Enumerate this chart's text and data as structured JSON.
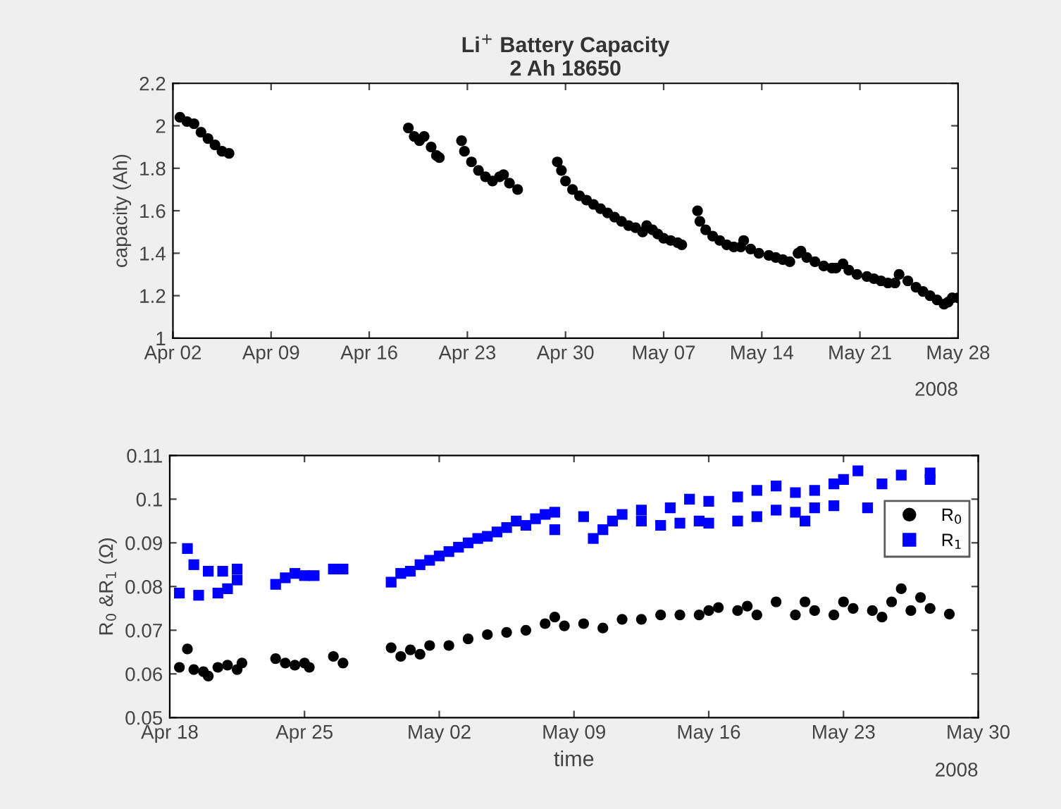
{
  "chart_data": [
    {
      "type": "scatter",
      "title": "Li$^{+}$ Battery Capacity",
      "subtitle": "2 Ah 18650",
      "ylabel": "capacity (Ah)",
      "marker": "circle",
      "grid": false,
      "legend": false,
      "xlim": [
        "2008-04-02",
        "2008-05-28"
      ],
      "xticks": [
        {
          "value": "2008-04-02",
          "label": "Apr 02"
        },
        {
          "value": "2008-04-09",
          "label": "Apr 09"
        },
        {
          "value": "2008-04-16",
          "label": "Apr 16"
        },
        {
          "value": "2008-04-23",
          "label": "Apr 23"
        },
        {
          "value": "2008-04-30",
          "label": "Apr 30"
        },
        {
          "value": "2008-05-07",
          "label": "May 07"
        },
        {
          "value": "2008-05-14",
          "label": "May 14"
        },
        {
          "value": "2008-05-21",
          "label": "May 21"
        },
        {
          "value": "2008-05-28",
          "label": "May 28"
        }
      ],
      "ylim": [
        1,
        2.2
      ],
      "yticks": [
        1,
        1.2,
        1.4,
        1.6,
        1.8,
        2,
        2.2
      ],
      "annotations": [
        "2008"
      ],
      "series": [
        {
          "color": "#000000",
          "x": [
            "2008-04-02T12:00",
            "2008-04-03T00:00",
            "2008-04-03T12:00",
            "2008-04-04T00:00",
            "2008-04-04T12:00",
            "2008-04-05T00:00",
            "2008-04-05T12:00",
            "2008-04-06T00:00",
            "2008-04-18T19:00",
            "2008-04-19T05:00",
            "2008-04-19T14:00",
            "2008-04-19T22:00",
            "2008-04-20T10:00",
            "2008-04-20T19:00",
            "2008-04-21T00:00",
            "2008-04-22T14:00",
            "2008-04-22T19:00",
            "2008-04-23T07:00",
            "2008-04-23T19:00",
            "2008-04-24T07:00",
            "2008-04-24T19:00",
            "2008-04-25T07:00",
            "2008-04-25T14:00",
            "2008-04-26T00:00",
            "2008-04-26T14:00",
            "2008-04-29T10:00",
            "2008-04-29T17:00",
            "2008-04-30T00:00",
            "2008-04-30T12:00",
            "2008-05-01T00:00",
            "2008-05-01T12:00",
            "2008-05-02T00:00",
            "2008-05-02T12:00",
            "2008-05-03T00:00",
            "2008-05-03T12:00",
            "2008-05-04T00:00",
            "2008-05-04T12:00",
            "2008-05-05T00:00",
            "2008-05-05T12:00",
            "2008-05-05T19:00",
            "2008-05-06T05:00",
            "2008-05-06T14:00",
            "2008-05-07T00:00",
            "2008-05-07T12:00",
            "2008-05-08T00:00",
            "2008-05-08T07:00",
            "2008-05-09T10:00",
            "2008-05-09T14:00",
            "2008-05-10T00:00",
            "2008-05-10T12:00",
            "2008-05-11T00:00",
            "2008-05-11T12:00",
            "2008-05-12T00:00",
            "2008-05-12T12:00",
            "2008-05-12T17:00",
            "2008-05-13T05:00",
            "2008-05-13T19:00",
            "2008-05-14T12:00",
            "2008-05-15T00:00",
            "2008-05-15T12:00",
            "2008-05-16T00:00",
            "2008-05-16T14:00",
            "2008-05-16T19:00",
            "2008-05-17T05:00",
            "2008-05-17T19:00",
            "2008-05-18T10:00",
            "2008-05-19T00:00",
            "2008-05-19T07:00",
            "2008-05-19T19:00",
            "2008-05-20T05:00",
            "2008-05-20T19:00",
            "2008-05-21T12:00",
            "2008-05-22T00:00",
            "2008-05-22T12:00",
            "2008-05-23T00:00",
            "2008-05-23T12:00",
            "2008-05-23T19:00",
            "2008-05-24T10:00",
            "2008-05-25T00:00",
            "2008-05-25T12:00",
            "2008-05-26T00:00",
            "2008-05-26T12:00",
            "2008-05-27T00:00",
            "2008-05-27T07:00",
            "2008-05-27T14:00",
            "2008-05-28T00:00"
          ],
          "values": [
            2.04,
            2.02,
            2.01,
            1.97,
            1.94,
            1.91,
            1.88,
            1.87,
            1.99,
            1.95,
            1.93,
            1.95,
            1.9,
            1.86,
            1.85,
            1.93,
            1.88,
            1.83,
            1.79,
            1.76,
            1.74,
            1.76,
            1.77,
            1.73,
            1.7,
            1.83,
            1.79,
            1.74,
            1.7,
            1.67,
            1.65,
            1.63,
            1.61,
            1.59,
            1.57,
            1.55,
            1.53,
            1.52,
            1.5,
            1.53,
            1.51,
            1.49,
            1.47,
            1.46,
            1.45,
            1.44,
            1.6,
            1.55,
            1.51,
            1.48,
            1.46,
            1.44,
            1.43,
            1.43,
            1.46,
            1.42,
            1.4,
            1.39,
            1.38,
            1.37,
            1.36,
            1.4,
            1.41,
            1.38,
            1.36,
            1.34,
            1.33,
            1.33,
            1.35,
            1.32,
            1.3,
            1.29,
            1.28,
            1.27,
            1.26,
            1.26,
            1.3,
            1.27,
            1.24,
            1.22,
            1.2,
            1.18,
            1.16,
            1.17,
            1.19,
            1.19
          ]
        }
      ]
    },
    {
      "type": "scatter",
      "xlabel": "time",
      "ylabel": "R$_{0}$ &R$_{1}$ (Ω)",
      "grid": false,
      "legend": "top right",
      "xlim": [
        "2008-04-18",
        "2008-05-30"
      ],
      "xticks": [
        {
          "value": "2008-04-18",
          "label": "Apr 18"
        },
        {
          "value": "2008-04-25",
          "label": "Apr 25"
        },
        {
          "value": "2008-05-02",
          "label": "May 02"
        },
        {
          "value": "2008-05-09",
          "label": "May 09"
        },
        {
          "value": "2008-05-16",
          "label": "May 16"
        },
        {
          "value": "2008-05-23",
          "label": "May 23"
        },
        {
          "value": "2008-05-30",
          "label": "May 30"
        }
      ],
      "ylim": [
        0.05,
        0.11
      ],
      "yticks": [
        0.05,
        0.06,
        0.07,
        0.08,
        0.09,
        0.1,
        0.11
      ],
      "annotations": [
        "2008"
      ],
      "series": [
        {
          "name": "R$_{0}$",
          "color": "#000000",
          "marker": "circle",
          "x": [
            "2008-04-18T22:00",
            "2008-04-18T12:00",
            "2008-04-19T06:00",
            "2008-04-19T18:00",
            "2008-04-20T00:00",
            "2008-04-20T12:00",
            "2008-04-21T00:00",
            "2008-04-21T12:00",
            "2008-04-21T18:00",
            "2008-04-23T12:00",
            "2008-04-24T00:00",
            "2008-04-24T12:00",
            "2008-04-25T00:00",
            "2008-04-25T06:00",
            "2008-04-26T12:00",
            "2008-04-27T00:00",
            "2008-04-29T12:00",
            "2008-04-30T00:00",
            "2008-04-30T12:00",
            "2008-05-01T00:00",
            "2008-05-01T12:00",
            "2008-05-02T12:00",
            "2008-05-03T12:00",
            "2008-05-04T12:00",
            "2008-05-05T12:00",
            "2008-05-06T12:00",
            "2008-05-07T12:00",
            "2008-05-08T00:00",
            "2008-05-08T12:00",
            "2008-05-09T12:00",
            "2008-05-10T12:00",
            "2008-05-11T12:00",
            "2008-05-12T12:00",
            "2008-05-13T12:00",
            "2008-05-14T12:00",
            "2008-05-15T12:00",
            "2008-05-16T00:00",
            "2008-05-16T12:00",
            "2008-05-17T12:00",
            "2008-05-18T00:00",
            "2008-05-18T12:00",
            "2008-05-19T12:00",
            "2008-05-20T12:00",
            "2008-05-21T00:00",
            "2008-05-21T12:00",
            "2008-05-22T12:00",
            "2008-05-23T00:00",
            "2008-05-23T12:00",
            "2008-05-24T12:00",
            "2008-05-25T00:00",
            "2008-05-25T12:00",
            "2008-05-26T00:00",
            "2008-05-26T12:00",
            "2008-05-27T00:00",
            "2008-05-27T12:00",
            "2008-05-28T12:00"
          ],
          "values": [
            0.0657,
            0.0615,
            0.061,
            0.0605,
            0.0595,
            0.0615,
            0.062,
            0.061,
            0.0625,
            0.0635,
            0.0625,
            0.062,
            0.0625,
            0.0615,
            0.064,
            0.0625,
            0.066,
            0.064,
            0.0655,
            0.0645,
            0.0665,
            0.0665,
            0.068,
            0.069,
            0.0695,
            0.07,
            0.0715,
            0.073,
            0.071,
            0.0715,
            0.0705,
            0.0725,
            0.0725,
            0.0735,
            0.0735,
            0.0735,
            0.0745,
            0.0752,
            0.0745,
            0.0755,
            0.0735,
            0.0765,
            0.0735,
            0.0765,
            0.0745,
            0.0735,
            0.0765,
            0.075,
            0.0745,
            0.073,
            0.0765,
            0.0795,
            0.0745,
            0.0775,
            0.075,
            0.0737
          ]
        },
        {
          "name": "R$_{1}$",
          "color": "#0000ff",
          "marker": "square",
          "x": [
            "2008-04-18T22:00",
            "2008-04-18T12:00",
            "2008-04-19T12:00",
            "2008-04-20T12:00",
            "2008-04-21T00:00",
            "2008-04-21T12:00",
            "2008-04-19T06:00",
            "2008-04-20T00:00",
            "2008-04-20T18:00",
            "2008-04-21T12:00",
            "2008-04-23T12:00",
            "2008-04-24T00:00",
            "2008-04-24T12:00",
            "2008-04-25T00:00",
            "2008-04-25T12:00",
            "2008-04-26T12:00",
            "2008-04-27T00:00",
            "2008-04-29T12:00",
            "2008-04-30T00:00",
            "2008-04-30T12:00",
            "2008-05-01T00:00",
            "2008-05-01T12:00",
            "2008-05-02T00:00",
            "2008-05-02T12:00",
            "2008-05-03T00:00",
            "2008-05-03T12:00",
            "2008-05-04T00:00",
            "2008-05-04T12:00",
            "2008-05-05T00:00",
            "2008-05-05T12:00",
            "2008-05-06T00:00",
            "2008-05-06T12:00",
            "2008-05-07T00:00",
            "2008-05-07T12:00",
            "2008-05-08T00:00",
            "2008-05-08T00:00",
            "2008-05-09T12:00",
            "2008-05-10T00:00",
            "2008-05-10T12:00",
            "2008-05-11T00:00",
            "2008-05-11T12:00",
            "2008-05-12T12:00",
            "2008-05-12T12:00",
            "2008-05-13T12:00",
            "2008-05-14T00:00",
            "2008-05-14T12:00",
            "2008-05-15T00:00",
            "2008-05-15T12:00",
            "2008-05-16T00:00",
            "2008-05-16T00:00",
            "2008-05-17T12:00",
            "2008-05-17T12:00",
            "2008-05-18T12:00",
            "2008-05-18T12:00",
            "2008-05-19T12:00",
            "2008-05-19T12:00",
            "2008-05-20T12:00",
            "2008-05-20T12:00",
            "2008-05-21T00:00",
            "2008-05-21T12:00",
            "2008-05-21T12:00",
            "2008-05-22T12:00",
            "2008-05-22T12:00",
            "2008-05-23T00:00",
            "2008-05-23T18:00",
            "2008-05-24T06:00",
            "2008-05-25T00:00",
            "2008-05-26T00:00",
            "2008-05-27T12:00",
            "2008-05-27T12:00"
          ],
          "values": [
            0.0887,
            0.0785,
            0.078,
            0.0785,
            0.0795,
            0.0815,
            0.085,
            0.0835,
            0.0835,
            0.084,
            0.0805,
            0.082,
            0.083,
            0.0825,
            0.0825,
            0.084,
            0.084,
            0.081,
            0.083,
            0.0835,
            0.085,
            0.086,
            0.087,
            0.088,
            0.089,
            0.09,
            0.091,
            0.0915,
            0.0925,
            0.0935,
            0.095,
            0.094,
            0.0955,
            0.0965,
            0.097,
            0.093,
            0.096,
            0.091,
            0.093,
            0.095,
            0.0965,
            0.0975,
            0.095,
            0.094,
            0.098,
            0.0945,
            0.1,
            0.095,
            0.0995,
            0.0945,
            0.1005,
            0.095,
            0.102,
            0.096,
            0.103,
            0.0975,
            0.1015,
            0.097,
            0.095,
            0.102,
            0.098,
            0.1035,
            0.0985,
            0.1045,
            0.1065,
            0.098,
            0.1035,
            0.1055,
            0.106,
            0.1045
          ]
        }
      ]
    }
  ]
}
